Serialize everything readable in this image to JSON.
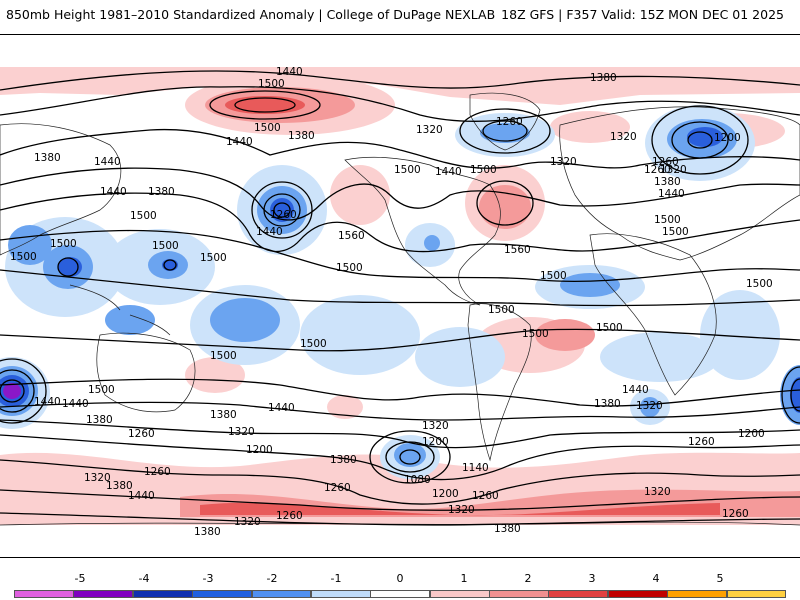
{
  "header": {
    "left_title": "850mb Height 1981–2010 Standardized Anomaly | College of DuPage NEXLAB",
    "right_title": "18Z GFS | F357 Valid: 15Z MON DEC 01 2025"
  },
  "map": {
    "contour_labels": [
      "1440",
      "1500",
      "1380",
      "1440",
      "1380",
      "1320",
      "1260",
      "1440",
      "1500",
      "1380",
      "1380",
      "1440",
      "1500",
      "1500",
      "1440",
      "1500",
      "1260",
      "1440",
      "1500",
      "1500",
      "1500",
      "1560",
      "1500",
      "1500",
      "1560",
      "1500",
      "1500",
      "1500",
      "1500",
      "1500",
      "1320",
      "1260",
      "1320",
      "1200",
      "1260",
      "1320",
      "1380",
      "1440",
      "1500",
      "1500",
      "1500",
      "1500",
      "1440",
      "1380",
      "1320",
      "1440",
      "1260",
      "1200",
      "1500",
      "1440",
      "1380",
      "1320",
      "1260",
      "1200",
      "1380",
      "1440",
      "1320",
      "1200",
      "1260",
      "1320",
      "1380",
      "1440",
      "1380",
      "1080",
      "1140",
      "1200",
      "1260",
      "1320",
      "1380",
      "1260",
      "1320",
      "1260",
      "1320",
      "1380",
      "1260"
    ]
  },
  "colorbar": {
    "ticks": [
      "-5",
      "-4",
      "-3",
      "-2",
      "-1",
      "0",
      "1",
      "2",
      "3",
      "4",
      "5"
    ],
    "colors": [
      "#e060e0",
      "#8000c0",
      "#1030b0",
      "#2060e0",
      "#5090f0",
      "#c0dcfa",
      "#ffffff",
      "#fac8c8",
      "#f09090",
      "#e04040",
      "#c00000",
      "#ffa000",
      "#ffd040"
    ]
  },
  "colors": {
    "neg1": "#cde3fa",
    "neg2": "#6ba4f0",
    "neg3": "#2a5fdc",
    "neg4": "#1630b0",
    "neg5": "#8a18c8",
    "pos1": "#fbd0d0",
    "pos2": "#f49a9a",
    "pos3": "#e85a5a"
  }
}
